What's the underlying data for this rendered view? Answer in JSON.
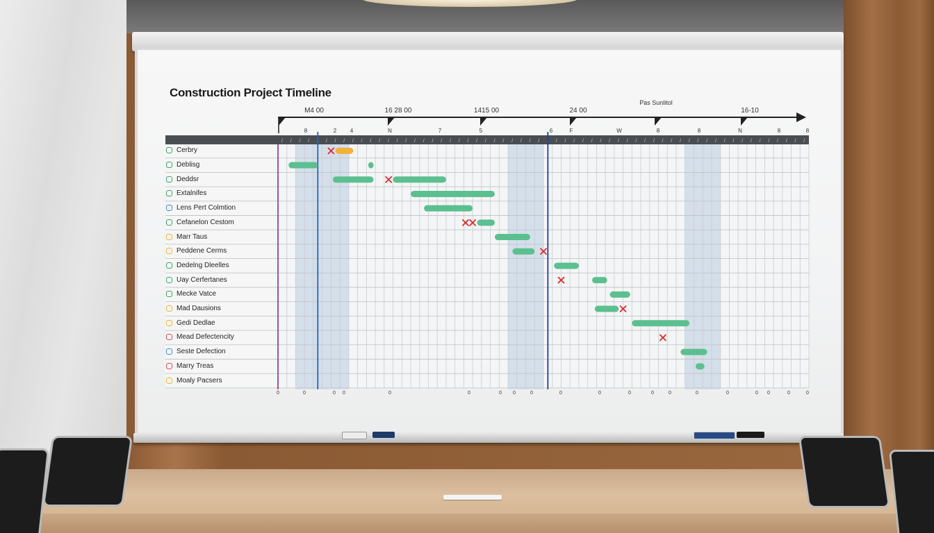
{
  "chart_data": {
    "type": "bar",
    "title": "Construction Project Timeline",
    "header_markers": [
      "Pas Sunlitol"
    ],
    "date_labels": [
      "M4 00",
      "16 28 00",
      "1415 00",
      "24 00",
      "16-10"
    ],
    "column_letters": [
      "8",
      "2",
      "4",
      "N",
      "7",
      "5",
      "6",
      "F",
      "W",
      "8",
      "8",
      "N",
      "8",
      "8"
    ],
    "bottom_ticks": [
      "0",
      "0",
      "0",
      "0",
      "0",
      "0",
      "0",
      "0",
      "0",
      "0",
      "0",
      "0",
      "0",
      "0",
      "0",
      "0",
      "0",
      "0",
      "0",
      "0"
    ],
    "x_range": [
      0,
      60
    ],
    "shaded_bands": [
      [
        2,
        8
      ],
      [
        26,
        30
      ],
      [
        46,
        50
      ]
    ],
    "today_lines": [
      {
        "x": 4.5,
        "color": "#2f5fb8"
      },
      {
        "x": 30.5,
        "color": "#1c3fa8"
      }
    ],
    "start_line": {
      "x": 0,
      "color": "#8a2a8a"
    },
    "rows": [
      {
        "label": "Cerbry",
        "icon_color": "#3aa56a",
        "bars": [
          {
            "start": 6.5,
            "end": 8.5,
            "color": "#f2b13b"
          }
        ],
        "marks": [
          6.0
        ]
      },
      {
        "label": "Deblisg",
        "icon_color": "#3aa56a",
        "bars": [
          {
            "start": 1.2,
            "end": 4.5,
            "color": "#5cbf90"
          },
          {
            "start": 10.2,
            "end": 10.8,
            "color": "#5cbf90"
          }
        ],
        "marks": []
      },
      {
        "label": "Deddsr",
        "icon_color": "#3aa56a",
        "bars": [
          {
            "start": 6.2,
            "end": 10.8,
            "color": "#5cbf90"
          },
          {
            "start": 13.0,
            "end": 19.0,
            "color": "#5cbf90"
          }
        ],
        "marks": [
          12.5
        ]
      },
      {
        "label": "Extalnifes",
        "icon_color": "#3aa56a",
        "bars": [
          {
            "start": 15.0,
            "end": 24.5,
            "color": "#5cbf90"
          }
        ],
        "marks": []
      },
      {
        "label": "Lens Pert Colmtion",
        "icon_color": "#3b8ad6",
        "bars": [
          {
            "start": 16.5,
            "end": 22.0,
            "color": "#5cbf90"
          }
        ],
        "marks": []
      },
      {
        "label": "Cefanelon Cestom",
        "icon_color": "#3aa56a",
        "bars": [
          {
            "start": 22.5,
            "end": 24.5,
            "color": "#5cbf90"
          }
        ],
        "marks": [
          21.2,
          22.0
        ]
      },
      {
        "label": "Marr Taus",
        "icon_color": "#f2b13b",
        "bars": [
          {
            "start": 24.5,
            "end": 28.5,
            "color": "#5cbf90"
          }
        ],
        "marks": []
      },
      {
        "label": "Peddene Cerms",
        "icon_color": "#f2b13b",
        "bars": [
          {
            "start": 26.5,
            "end": 29.0,
            "color": "#5cbf90"
          }
        ],
        "marks": [
          30.0
        ]
      },
      {
        "label": "Dedelng Dleelles",
        "icon_color": "#3aa56a",
        "bars": [
          {
            "start": 31.2,
            "end": 34.0,
            "color": "#5cbf90"
          }
        ],
        "marks": []
      },
      {
        "label": "Uay Cerfertanes",
        "icon_color": "#3aa56a",
        "bars": [
          {
            "start": 35.5,
            "end": 37.2,
            "color": "#5cbf90"
          }
        ],
        "marks": [
          32.0
        ]
      },
      {
        "label": "Mecke Vatce",
        "icon_color": "#3aa56a",
        "bars": [
          {
            "start": 37.5,
            "end": 39.8,
            "color": "#5cbf90"
          }
        ],
        "marks": []
      },
      {
        "label": "Mad Dausions",
        "icon_color": "#f2b13b",
        "bars": [
          {
            "start": 35.8,
            "end": 38.5,
            "color": "#5cbf90"
          }
        ],
        "marks": [
          39.0
        ]
      },
      {
        "label": "Gedi Dedlae",
        "icon_color": "#f2b13b",
        "bars": [
          {
            "start": 40.0,
            "end": 46.5,
            "color": "#5cbf90"
          }
        ],
        "marks": []
      },
      {
        "label": "Mead Defectencity",
        "icon_color": "#e0494f",
        "bars": [],
        "marks": [
          43.5
        ]
      },
      {
        "label": "Seste Defection",
        "icon_color": "#3b8ad6",
        "bars": [
          {
            "start": 45.5,
            "end": 48.5,
            "color": "#5cbf90"
          }
        ],
        "marks": []
      },
      {
        "label": "Marry Treas",
        "icon_color": "#e0494f",
        "bars": [
          {
            "start": 47.2,
            "end": 48.2,
            "color": "#5cbf90"
          }
        ],
        "marks": []
      },
      {
        "label": "Moaly Pacsers",
        "icon_color": "#f2b13b",
        "bars": [],
        "marks": []
      }
    ],
    "grid": true
  },
  "colors": {
    "bar_green": "#5cbf90",
    "bar_orange": "#f2b13b",
    "mark_red": "#e02a2a",
    "band": "#c9d7e6",
    "header_strip": "#4a4d52"
  }
}
